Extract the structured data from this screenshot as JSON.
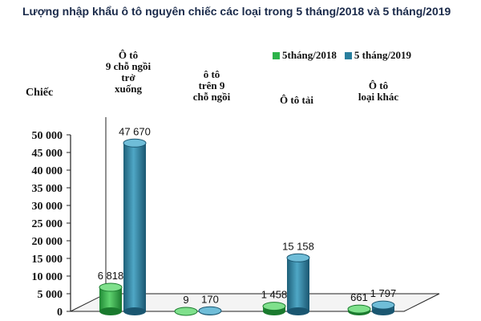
{
  "chart_data": {
    "type": "bar",
    "title": "Lượng nhập khẩu ô tô nguyên chiếc các loại trong 5 tháng/2018 và 5 tháng/2019",
    "ylabel": "Chiếc",
    "ylim": [
      0,
      50000
    ],
    "y_ticks": [
      "0",
      "5 000",
      "10 000",
      "15 000",
      "20 000",
      "25 000",
      "30 000",
      "35 000",
      "40 000",
      "45 000",
      "50 000"
    ],
    "categories": [
      "Ô tô\n9 chỗ ngồi\ntrở\nxuống",
      "ô tô\ntrên 9\nchỗ ngồi",
      "Ô tô tải",
      "Ô tô\nloại khác"
    ],
    "series": [
      {
        "name": "5tháng/2018",
        "color": "#2db34a",
        "values": [
          6818,
          9,
          1458,
          661
        ],
        "labels": [
          "6 818",
          "9",
          "1 458",
          "661"
        ]
      },
      {
        "name": "5 tháng/2019",
        "color": "#2a7f9e",
        "values": [
          47670,
          170,
          15158,
          1797
        ],
        "labels": [
          "47 670",
          "170",
          "15 158",
          "1 797"
        ]
      }
    ],
    "legend_position": "top-right",
    "grid": false,
    "style": "3d-cylinder"
  }
}
